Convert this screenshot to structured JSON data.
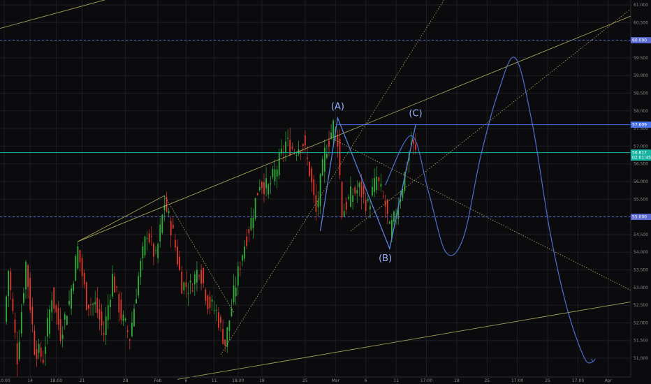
{
  "chart_data": {
    "type": "candlestick",
    "title": "",
    "xlabel": "",
    "ylabel": "",
    "ylim": [
      50.75,
      61.25
    ],
    "grid": true,
    "y_ticks": [
      "51.000",
      "51.500",
      "52.000",
      "52.500",
      "53.000",
      "53.500",
      "54.000",
      "54.500",
      "55.000",
      "55.500",
      "56.000",
      "56.500",
      "57.000",
      "57.500",
      "58.000",
      "58.500",
      "59.000",
      "59.500",
      "60.000",
      "60.500",
      "61.000"
    ],
    "x_ticks": [
      {
        "i": 0,
        "label": "10:00"
      },
      {
        "i": 12,
        "label": "14"
      },
      {
        "i": 24,
        "label": "18:00"
      },
      {
        "i": 36,
        "label": "21"
      },
      {
        "i": 56,
        "label": "28"
      },
      {
        "i": 71,
        "label": "Feb"
      },
      {
        "i": 84,
        "label": "6"
      },
      {
        "i": 97,
        "label": "11"
      },
      {
        "i": 108,
        "label": "18:00"
      },
      {
        "i": 119,
        "label": "18"
      },
      {
        "i": 139,
        "label": "25"
      },
      {
        "i": 153,
        "label": "Mar"
      },
      {
        "i": 167,
        "label": "6"
      },
      {
        "i": 181,
        "label": "11"
      },
      {
        "i": 195,
        "label": "17:00"
      },
      {
        "i": 209,
        "label": "18"
      },
      {
        "i": 223,
        "label": "25"
      },
      {
        "i": 237,
        "label": "17:00"
      },
      {
        "i": 251,
        "label": "25"
      },
      {
        "i": 265,
        "label": "17:00"
      },
      {
        "i": 279,
        "label": "Apr"
      }
    ],
    "ohlc_anchors": [
      [
        0,
        52.0
      ],
      [
        2,
        53.5
      ],
      [
        6,
        51.0
      ],
      [
        10,
        53.7
      ],
      [
        14,
        51.3
      ],
      [
        18,
        51.0
      ],
      [
        22,
        52.8
      ],
      [
        26,
        51.7
      ],
      [
        30,
        52.6
      ],
      [
        34,
        54.1
      ],
      [
        38,
        52.6
      ],
      [
        42,
        52.5
      ],
      [
        46,
        51.7
      ],
      [
        50,
        53.3
      ],
      [
        54,
        52.2
      ],
      [
        58,
        51.6
      ],
      [
        62,
        53.3
      ],
      [
        66,
        54.6
      ],
      [
        70,
        53.8
      ],
      [
        74,
        55.4
      ],
      [
        78,
        54.5
      ],
      [
        82,
        53.1
      ],
      [
        86,
        53.0
      ],
      [
        90,
        53.6
      ],
      [
        94,
        52.6
      ],
      [
        98,
        52.3
      ],
      [
        102,
        51.4
      ],
      [
        106,
        52.8
      ],
      [
        110,
        54.0
      ],
      [
        114,
        54.9
      ],
      [
        118,
        56.0
      ],
      [
        122,
        55.8
      ],
      [
        126,
        56.4
      ],
      [
        130,
        57.1
      ],
      [
        134,
        56.9
      ],
      [
        138,
        57.1
      ],
      [
        141,
        56.3
      ],
      [
        144,
        55.1
      ],
      [
        148,
        56.8
      ],
      [
        152,
        57.6
      ],
      [
        154,
        57.2
      ],
      [
        156,
        55.1
      ],
      [
        160,
        55.6
      ],
      [
        164,
        55.8
      ],
      [
        168,
        55.3
      ],
      [
        172,
        56.1
      ],
      [
        176,
        55.3
      ],
      [
        178,
        54.6
      ],
      [
        180,
        54.9
      ],
      [
        184,
        55.9
      ],
      [
        188,
        57.1
      ],
      [
        190,
        56.8
      ]
    ],
    "horizontal_lines": [
      {
        "y": 57.609,
        "label": "57.609",
        "color": "#4a72e8",
        "style": "solid"
      },
      {
        "y": 56.817,
        "label": "56.817",
        "color": "#19b3a1",
        "style": "solid",
        "sub": "02:01:45"
      },
      {
        "y": 60.0,
        "label": "60.000",
        "color": "#5b6ad0",
        "style": "dashed"
      },
      {
        "y": 55.0,
        "label": "55.000",
        "color": "#5b6ad0",
        "style": "dashed"
      }
    ],
    "trend_lines": [
      {
        "from": [
          34,
          54.3
        ],
        "to": [
          330,
          61.7
        ],
        "style": "solid"
      },
      {
        "from": [
          34,
          54.3
        ],
        "to": [
          74,
          55.6
        ],
        "style": "solid"
      },
      {
        "from": [
          74,
          55.6
        ],
        "to": [
          106,
          52.3
        ],
        "style": "dotted"
      },
      {
        "from": [
          100,
          51.1
        ],
        "to": [
          212,
          62.0
        ],
        "style": "dotted"
      },
      {
        "from": [
          160,
          54.6
        ],
        "to": [
          300,
          61.4
        ],
        "style": "dotted"
      },
      {
        "from": [
          152,
          57.2
        ],
        "to": [
          290,
          52.9
        ],
        "style": "dotted"
      },
      {
        "from": [
          80,
          50.4
        ],
        "to": [
          290,
          52.6
        ],
        "style": "solid"
      },
      {
        "from": [
          -10,
          60.2
        ],
        "to": [
          80,
          61.7
        ],
        "style": "solid"
      }
    ],
    "wave_path": [
      [
        146,
        54.6
      ],
      [
        154,
        57.8
      ],
      [
        178,
        54.1
      ],
      [
        190,
        57.6
      ]
    ],
    "wave_labels": [
      {
        "x": 154,
        "y": 58.05,
        "label": "(A)"
      },
      {
        "x": 176,
        "y": 53.75,
        "label": "(B)"
      },
      {
        "x": 190,
        "y": 57.85,
        "label": "(C)"
      }
    ],
    "forecast_curve": [
      [
        176,
        55.9
      ],
      [
        188,
        57.3
      ],
      [
        196,
        55.7
      ],
      [
        204,
        54.0
      ],
      [
        212,
        54.4
      ],
      [
        220,
        56.7
      ],
      [
        228,
        58.5
      ],
      [
        236,
        59.5
      ],
      [
        244,
        57.6
      ],
      [
        252,
        54.6
      ],
      [
        260,
        52.4
      ],
      [
        268,
        51.0
      ],
      [
        272,
        50.9
      ]
    ],
    "colors": {
      "background": "#0b0b0e",
      "grid": "#1c1e26",
      "up": "#2fae3a",
      "down": "#e03a2f",
      "trend": "#c8c36a",
      "wave": "#5a82dc",
      "forecast": "#4d6fcf",
      "label": "#9ab2ff"
    }
  }
}
